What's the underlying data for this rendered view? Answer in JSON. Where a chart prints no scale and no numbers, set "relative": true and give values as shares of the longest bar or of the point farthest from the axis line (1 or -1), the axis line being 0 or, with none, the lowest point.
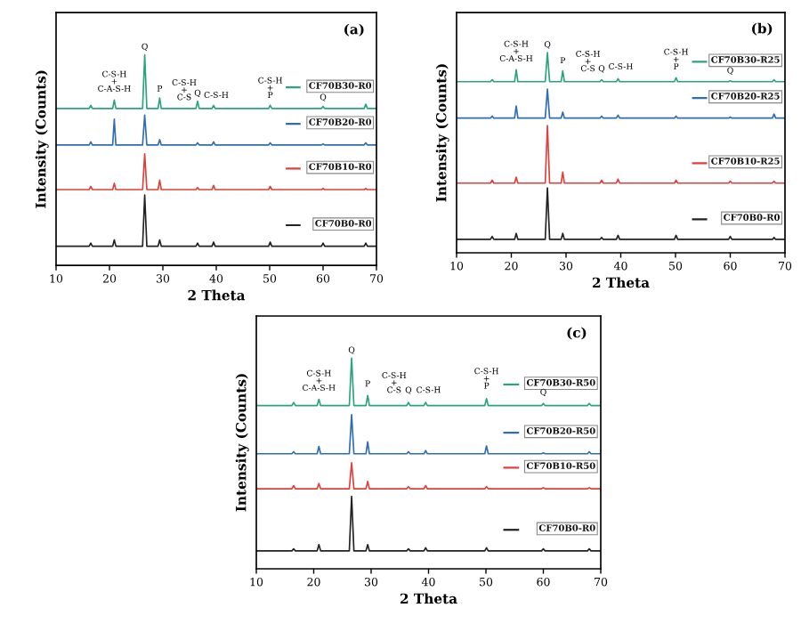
{
  "chart_data": [
    {
      "type": "line",
      "relative": true,
      "xlabel": "2 Theta",
      "ylabel": "Intensity (Counts)",
      "xlim": [
        10,
        70
      ],
      "xticks": [
        10,
        20,
        30,
        40,
        50,
        60,
        70
      ],
      "legend": "right",
      "grid": false,
      "x": [
        10,
        16.2,
        16.5,
        16.8,
        20.6,
        20.9,
        21.2,
        26.2,
        26.6,
        27.0,
        29.1,
        29.4,
        29.7,
        36.2,
        36.5,
        36.8,
        39.2,
        39.5,
        39.8,
        49.8,
        50.1,
        50.4,
        59.7,
        60.0,
        60.3,
        67.7,
        68.0,
        68.3,
        70
      ],
      "series": [
        {
          "name": "CF70B30-R0",
          "color": "#2aa57a",
          "values": [
            0.745,
            0.745,
            0.76,
            0.745,
            0.745,
            0.785,
            0.745,
            0.745,
            1.0,
            0.745,
            0.745,
            0.795,
            0.745,
            0.745,
            0.78,
            0.745,
            0.745,
            0.76,
            0.745,
            0.745,
            0.76,
            0.745,
            0.745,
            0.755,
            0.745,
            0.745,
            0.765,
            0.745,
            0.745
          ]
        },
        {
          "name": "CF70B20-R0",
          "color": "#2f6db5",
          "values": [
            0.572,
            0.572,
            0.587,
            0.572,
            0.572,
            0.694,
            0.572,
            0.572,
            0.714,
            0.572,
            0.572,
            0.597,
            0.572,
            0.572,
            0.582,
            0.572,
            0.572,
            0.587,
            0.572,
            0.572,
            0.582,
            0.572,
            0.572,
            0.577,
            0.572,
            0.572,
            0.582,
            0.572,
            0.572
          ]
        },
        {
          "name": "CF70B10-R0",
          "color": "#e0403a",
          "values": [
            0.36,
            0.36,
            0.375,
            0.36,
            0.36,
            0.39,
            0.36,
            0.36,
            0.53,
            0.36,
            0.36,
            0.405,
            0.36,
            0.36,
            0.37,
            0.36,
            0.36,
            0.38,
            0.36,
            0.36,
            0.375,
            0.36,
            0.36,
            0.365,
            0.36,
            0.36,
            0.365,
            0.36,
            0.36
          ]
        },
        {
          "name": "CF70B0-R0",
          "color": "#222222",
          "values": [
            0.091,
            0.091,
            0.106,
            0.091,
            0.091,
            0.121,
            0.091,
            0.091,
            0.334,
            0.091,
            0.091,
            0.121,
            0.091,
            0.091,
            0.106,
            0.091,
            0.091,
            0.111,
            0.091,
            0.091,
            0.111,
            0.091,
            0.091,
            0.106,
            0.091,
            0.091,
            0.106,
            0.091,
            0.091
          ]
        }
      ],
      "annotations": [
        "(a)",
        {
          "text": "C-S-H\n+\nC-A-S-H",
          "x": 20.9,
          "y": 0.8
        },
        {
          "text": "Q",
          "x": 26.6,
          "y": 1.0
        },
        {
          "text": "P",
          "x": 29.4,
          "y": 0.8
        },
        {
          "text": "C-S-H\n+\nC-S",
          "x": 34,
          "y": 0.76
        },
        {
          "text": "Q",
          "x": 36.5,
          "y": 0.78
        },
        {
          "text": "C-S-H",
          "x": 40,
          "y": 0.77
        },
        {
          "text": "C-S-H\n+\nP",
          "x": 50.1,
          "y": 0.77
        },
        {
          "text": "Q",
          "x": 60,
          "y": 0.76
        }
      ]
    },
    {
      "type": "line",
      "relative": true,
      "xlabel": "2 Theta",
      "ylabel": "Intensity (Counts)",
      "xlim": [
        10,
        70
      ],
      "xticks": [
        10,
        20,
        30,
        40,
        50,
        60,
        70
      ],
      "legend": "right",
      "grid": false,
      "x": [
        10,
        16.2,
        16.5,
        16.8,
        20.6,
        20.9,
        21.2,
        26.2,
        26.6,
        27.0,
        29.1,
        29.4,
        29.7,
        36.2,
        36.5,
        36.8,
        39.2,
        39.5,
        39.8,
        49.8,
        50.1,
        50.4,
        59.7,
        60.0,
        60.3,
        67.7,
        68.0,
        68.3,
        70
      ],
      "series": [
        {
          "name": "CF70B30-R25",
          "color": "#2aa57a",
          "values": [
            0.855,
            0.855,
            0.865,
            0.855,
            0.855,
            0.915,
            0.855,
            0.855,
            1.0,
            0.855,
            0.855,
            0.909,
            0.855,
            0.855,
            0.865,
            0.855,
            0.855,
            0.87,
            0.855,
            0.855,
            0.875,
            0.855,
            0.855,
            0.86,
            0.855,
            0.855,
            0.865,
            0.855,
            0.855
          ]
        },
        {
          "name": "CF70B20-R25",
          "color": "#2f6db5",
          "values": [
            0.673,
            0.673,
            0.683,
            0.673,
            0.673,
            0.733,
            0.673,
            0.673,
            0.818,
            0.673,
            0.673,
            0.703,
            0.673,
            0.673,
            0.683,
            0.673,
            0.673,
            0.688,
            0.673,
            0.673,
            0.683,
            0.673,
            0.673,
            0.678,
            0.673,
            0.673,
            0.693,
            0.673,
            0.673
          ]
        },
        {
          "name": "CF70B10-R25",
          "color": "#e0403a",
          "values": [
            0.348,
            0.348,
            0.363,
            0.348,
            0.348,
            0.378,
            0.348,
            0.348,
            0.636,
            0.348,
            0.348,
            0.403,
            0.348,
            0.348,
            0.363,
            0.348,
            0.348,
            0.368,
            0.348,
            0.348,
            0.363,
            0.348,
            0.348,
            0.358,
            0.348,
            0.348,
            0.358,
            0.348,
            0.348
          ]
        },
        {
          "name": "CF70B0-R0",
          "color": "#222222",
          "values": [
            0.067,
            0.067,
            0.082,
            0.067,
            0.067,
            0.097,
            0.067,
            0.067,
            0.324,
            0.067,
            0.067,
            0.097,
            0.067,
            0.067,
            0.077,
            0.067,
            0.067,
            0.087,
            0.067,
            0.067,
            0.087,
            0.067,
            0.067,
            0.082,
            0.067,
            0.067,
            0.077,
            0.067,
            0.067
          ]
        }
      ],
      "annotations": [
        "(b)",
        {
          "text": "C-S-H\n+\nC-A-S-H",
          "x": 20.9,
          "y": 0.93
        },
        {
          "text": "Q",
          "x": 26.6,
          "y": 1.0
        },
        {
          "text": "P",
          "x": 29.4,
          "y": 0.92
        },
        {
          "text": "C-S-H\n+\nC-S",
          "x": 34,
          "y": 0.88
        },
        {
          "text": "Q",
          "x": 36.5,
          "y": 0.88
        },
        {
          "text": "C-S-H",
          "x": 40,
          "y": 0.89
        },
        {
          "text": "C-S-H\n+\nP",
          "x": 50.1,
          "y": 0.89
        },
        {
          "text": "Q",
          "x": 60,
          "y": 0.87
        }
      ]
    },
    {
      "type": "line",
      "relative": true,
      "xlabel": "2 Theta",
      "ylabel": "Intensity (Counts)",
      "xlim": [
        10,
        70
      ],
      "xticks": [
        10,
        20,
        30,
        40,
        50,
        60,
        70
      ],
      "legend": "right",
      "grid": false,
      "x": [
        10,
        16.2,
        16.5,
        16.8,
        20.6,
        20.9,
        21.2,
        26.2,
        26.6,
        27.0,
        29.1,
        29.4,
        29.7,
        36.2,
        36.5,
        36.8,
        39.2,
        39.5,
        39.8,
        49.8,
        50.1,
        50.4,
        59.7,
        60.0,
        60.3,
        67.7,
        68.0,
        68.3,
        70
      ],
      "series": [
        {
          "name": "CF70B30-R50",
          "color": "#2aa57a",
          "values": [
            0.775,
            0.775,
            0.79,
            0.775,
            0.775,
            0.805,
            0.775,
            0.775,
            1.0,
            0.775,
            0.775,
            0.823,
            0.775,
            0.775,
            0.79,
            0.775,
            0.775,
            0.79,
            0.775,
            0.775,
            0.808,
            0.775,
            0.775,
            0.785,
            0.775,
            0.775,
            0.785,
            0.775,
            0.775
          ]
        },
        {
          "name": "CF70B20-R50",
          "color": "#2f6db5",
          "values": [
            0.546,
            0.546,
            0.556,
            0.546,
            0.546,
            0.581,
            0.546,
            0.546,
            0.732,
            0.546,
            0.546,
            0.603,
            0.546,
            0.546,
            0.556,
            0.546,
            0.546,
            0.561,
            0.546,
            0.546,
            0.583,
            0.546,
            0.546,
            0.551,
            0.546,
            0.546,
            0.556,
            0.546,
            0.546
          ]
        },
        {
          "name": "CF70B10-R50",
          "color": "#e0403a",
          "values": [
            0.38,
            0.38,
            0.395,
            0.38,
            0.38,
            0.405,
            0.38,
            0.38,
            0.504,
            0.38,
            0.38,
            0.415,
            0.38,
            0.38,
            0.39,
            0.38,
            0.38,
            0.395,
            0.38,
            0.38,
            0.39,
            0.38,
            0.38,
            0.385,
            0.38,
            0.38,
            0.385,
            0.38,
            0.38
          ]
        },
        {
          "name": "CF70B0-R0",
          "color": "#222222",
          "values": [
            0.085,
            0.085,
            0.095,
            0.085,
            0.085,
            0.115,
            0.085,
            0.085,
            0.344,
            0.085,
            0.085,
            0.115,
            0.085,
            0.085,
            0.095,
            0.085,
            0.085,
            0.1,
            0.085,
            0.085,
            0.1,
            0.085,
            0.085,
            0.095,
            0.085,
            0.085,
            0.095,
            0.085,
            0.085
          ]
        }
      ],
      "annotations": [
        "(c)",
        {
          "text": "C-S-H\n+\nC-A-S-H",
          "x": 20.9,
          "y": 0.82
        },
        {
          "text": "Q",
          "x": 26.6,
          "y": 1.0
        },
        {
          "text": "P",
          "x": 29.4,
          "y": 0.84
        },
        {
          "text": "C-S-H\n+\nC-S",
          "x": 34,
          "y": 0.81
        },
        {
          "text": "Q",
          "x": 36.5,
          "y": 0.81
        },
        {
          "text": "C-S-H",
          "x": 40,
          "y": 0.81
        },
        {
          "text": "C-S-H\n+\nP",
          "x": 50.1,
          "y": 0.83
        },
        {
          "text": "Q",
          "x": 60,
          "y": 0.8
        }
      ]
    }
  ]
}
